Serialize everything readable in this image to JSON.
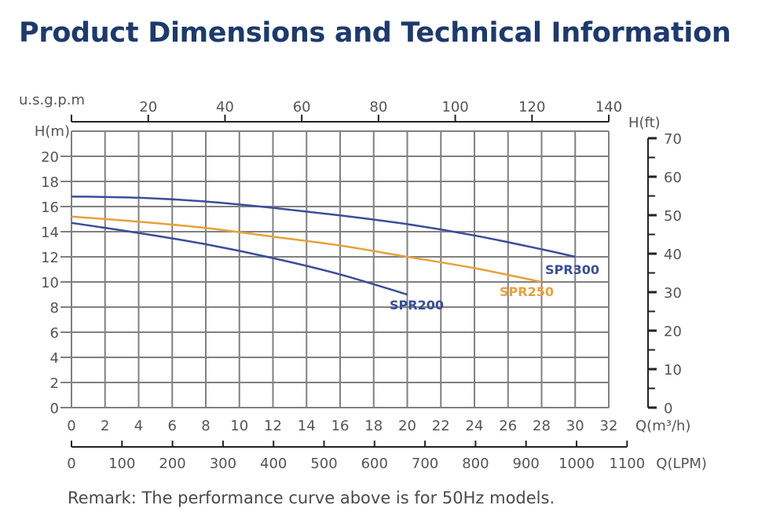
{
  "page_title": "Product Dimensions and Technical Information",
  "remark": "Remark: The performance curve above is for 50Hz models.",
  "colors": {
    "title": "#1d3a6e",
    "spr300": "#3a4e9a",
    "spr250": "#e8a13a",
    "spr200": "#3a4e9a",
    "grid": "#808080"
  },
  "chart_data": {
    "type": "line",
    "title": "",
    "xlabel": "Q(m³/h)",
    "ylabel": "H(m)",
    "xlim": [
      0,
      32
    ],
    "ylim": [
      0,
      22
    ],
    "x_ticks": [
      "0",
      "2",
      "4",
      "6",
      "8",
      "10",
      "12",
      "14",
      "16",
      "18",
      "20",
      "22",
      "24",
      "26",
      "28",
      "30",
      "32"
    ],
    "y_ticks": [
      "0",
      "2",
      "4",
      "6",
      "8",
      "10",
      "12",
      "14",
      "16",
      "18",
      "20"
    ],
    "grid": true,
    "secondary_axes": {
      "top": {
        "label": "u.s.g.p.m",
        "ticks": [
          "20",
          "40",
          "60",
          "80",
          "100",
          "120",
          "140"
        ]
      },
      "right": {
        "label": "H(ft)",
        "ticks": [
          "0",
          "10",
          "20",
          "30",
          "40",
          "50",
          "60",
          "70"
        ]
      },
      "bottom2": {
        "label": "Q(LPM)",
        "ticks": [
          "0",
          "100",
          "200",
          "300",
          "400",
          "500",
          "600",
          "700",
          "800",
          "900",
          "1000",
          "1100"
        ]
      }
    },
    "series": [
      {
        "name": "SPR300",
        "x": [
          0,
          4,
          8,
          12,
          16,
          20,
          24,
          28,
          30
        ],
        "y": [
          16.8,
          16.7,
          16.4,
          15.9,
          15.3,
          14.6,
          13.7,
          12.6,
          12.0
        ]
      },
      {
        "name": "SPR250",
        "x": [
          0,
          4,
          8,
          12,
          16,
          20,
          24,
          28
        ],
        "y": [
          15.2,
          14.8,
          14.3,
          13.6,
          12.9,
          12.0,
          11.1,
          10.0
        ]
      },
      {
        "name": "SPR200",
        "x": [
          0,
          4,
          8,
          12,
          16,
          20
        ],
        "y": [
          14.7,
          13.9,
          13.0,
          11.9,
          10.6,
          9.0
        ]
      }
    ]
  }
}
